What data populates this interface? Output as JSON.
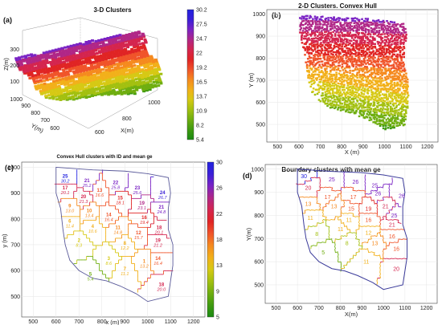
{
  "figure": {
    "panel_a_label": "(a)",
    "panel_b_label": "(b)",
    "panel_c_label": "(c)",
    "panel_d_label": "(d)"
  },
  "colors": {
    "ramp": [
      "#1a8a12",
      "#3f9a10",
      "#6fae10",
      "#a3c010",
      "#d6c914",
      "#f2b01a",
      "#f58a1f",
      "#f0542a",
      "#e02424",
      "#d4254f",
      "#b02787",
      "#7a23c4",
      "#3a1fd8",
      "#2222e0"
    ]
  },
  "chart_data": [
    {
      "type": "scatter",
      "panel": "a",
      "title": "3-D Clusters",
      "xlabel": "X(m)",
      "ylabel": "Y(m)",
      "zlabel": "Z(m)",
      "x_ticks": [
        "600",
        "800",
        "1000"
      ],
      "y_ticks": [
        "600",
        "700",
        "800",
        "900",
        "1000"
      ],
      "z_ticks": [
        "100",
        "200",
        "300"
      ],
      "colorbar_ticks": [
        "30.2",
        "27.5",
        "24.7",
        "22",
        "19.2",
        "16.5",
        "13.7",
        "10.9",
        "8.2",
        "5.4"
      ],
      "colorbar_range": [
        5.4,
        30.2
      ]
    },
    {
      "type": "scatter",
      "panel": "b",
      "title": "2-D Clusters.  Convex Hull",
      "xlabel": "X (m)",
      "ylabel": "Y  (m)",
      "xlim": [
        450,
        1250
      ],
      "ylim": [
        420,
        1020
      ],
      "x_ticks": [
        "500",
        "600",
        "700",
        "800",
        "900",
        "1000",
        "1100",
        "1200"
      ],
      "y_ticks": [
        "500",
        "600",
        "700",
        "800",
        "900",
        "1000"
      ]
    },
    {
      "type": "scatter",
      "panel": "c",
      "title": "Convex Hull clusters with ID and mean ge",
      "xlabel": "x (m)",
      "ylabel": "y (m)",
      "xlim": [
        450,
        1250
      ],
      "ylim": [
        420,
        1020
      ],
      "x_ticks": [
        "500",
        "600",
        "700",
        "800",
        "900",
        "1000",
        "1100",
        "1200"
      ],
      "y_ticks": [
        "500",
        "600",
        "700",
        "800",
        "900",
        "1000"
      ],
      "colorbar_ticks": [
        "30",
        "26",
        "22",
        "18",
        "13",
        "9",
        "5"
      ],
      "colorbar_range": [
        5,
        30
      ],
      "clusters": [
        {
          "id": "25",
          "ge": "30.2",
          "x": 640,
          "y": 960
        },
        {
          "id": "21",
          "ge": "25.2",
          "x": 735,
          "y": 943
        },
        {
          "id": "22",
          "ge": "25.8",
          "x": 860,
          "y": 935
        },
        {
          "id": "23",
          "ge": "25.6",
          "x": 955,
          "y": 915
        },
        {
          "id": "24",
          "ge": "26.7",
          "x": 1065,
          "y": 895
        },
        {
          "id": "17",
          "ge": "20.1",
          "x": 640,
          "y": 915
        },
        {
          "id": "20",
          "ge": "21.3",
          "x": 720,
          "y": 880
        },
        {
          "id": "13",
          "ge": "16.6",
          "x": 790,
          "y": 905
        },
        {
          "id": "15",
          "ge": "18.1",
          "x": 880,
          "y": 875
        },
        {
          "id": "19",
          "ge": "23.1",
          "x": 975,
          "y": 855
        },
        {
          "id": "21",
          "ge": "24.8",
          "x": 1060,
          "y": 840
        },
        {
          "id": "9",
          "ge": "13.0",
          "x": 660,
          "y": 845
        },
        {
          "id": "10",
          "ge": "13.4",
          "x": 745,
          "y": 825
        },
        {
          "id": "14",
          "ge": "16.4",
          "x": 830,
          "y": 810
        },
        {
          "id": "16",
          "ge": "19.4",
          "x": 985,
          "y": 800
        },
        {
          "id": "6",
          "ge": "11.4",
          "x": 660,
          "y": 785
        },
        {
          "id": "4",
          "ge": "10.6",
          "x": 760,
          "y": 765
        },
        {
          "id": "11",
          "ge": "14.8",
          "x": 870,
          "y": 760
        },
        {
          "id": "12",
          "ge": "15.7",
          "x": 960,
          "y": 740
        },
        {
          "id": "18",
          "ge": "20.1",
          "x": 1050,
          "y": 760
        },
        {
          "id": "19",
          "ge": "21.2",
          "x": 1045,
          "y": 710
        },
        {
          "id": "2",
          "ge": "8.3",
          "x": 700,
          "y": 710
        },
        {
          "id": "8",
          "ge": "12.2",
          "x": 900,
          "y": 700
        },
        {
          "id": "3",
          "ge": "8.6",
          "x": 830,
          "y": 640
        },
        {
          "id": "7",
          "ge": "11.1",
          "x": 900,
          "y": 600
        },
        {
          "id": "1",
          "ge": "13.2",
          "x": 985,
          "y": 630
        },
        {
          "id": "14",
          "ge": "16.4",
          "x": 1045,
          "y": 640
        },
        {
          "id": "5",
          "ge": "5.4",
          "x": 750,
          "y": 580
        },
        {
          "id": "18",
          "ge": "20.0",
          "x": 1060,
          "y": 540
        }
      ]
    },
    {
      "type": "scatter",
      "panel": "d",
      "title": "Boundary clusters with mean ge",
      "xlabel": "X(m)",
      "ylabel": "Y(m)",
      "xlim": [
        450,
        1250
      ],
      "ylim": [
        420,
        1020
      ],
      "x_ticks": [
        "500",
        "600",
        "700",
        "800",
        "900",
        "1000",
        "1100",
        "1200"
      ],
      "y_ticks": [
        "500",
        "600",
        "700",
        "800",
        "900",
        "1000"
      ],
      "labels": [
        {
          "v": "30",
          "x": 630,
          "y": 970
        },
        {
          "v": "25",
          "x": 760,
          "y": 955
        },
        {
          "v": "26",
          "x": 870,
          "y": 945
        },
        {
          "v": "25",
          "x": 960,
          "y": 930
        },
        {
          "v": "20",
          "x": 650,
          "y": 920
        },
        {
          "v": "26",
          "x": 975,
          "y": 895
        },
        {
          "v": "26",
          "x": 1085,
          "y": 885
        },
        {
          "v": "17",
          "x": 740,
          "y": 880
        },
        {
          "v": "17",
          "x": 860,
          "y": 880
        },
        {
          "v": "13",
          "x": 650,
          "y": 850
        },
        {
          "v": "13",
          "x": 770,
          "y": 840
        },
        {
          "v": "15",
          "x": 850,
          "y": 830
        },
        {
          "v": "19",
          "x": 930,
          "y": 830
        },
        {
          "v": "21",
          "x": 1010,
          "y": 840
        },
        {
          "v": "11",
          "x": 660,
          "y": 790
        },
        {
          "v": "11",
          "x": 840,
          "y": 780
        },
        {
          "v": "16",
          "x": 930,
          "y": 780
        },
        {
          "v": "25",
          "x": 1050,
          "y": 800
        },
        {
          "v": "21",
          "x": 1040,
          "y": 760
        },
        {
          "v": "8",
          "x": 690,
          "y": 720
        },
        {
          "v": "11",
          "x": 800,
          "y": 740
        },
        {
          "v": "12",
          "x": 930,
          "y": 725
        },
        {
          "v": "16",
          "x": 1040,
          "y": 710
        },
        {
          "v": "8",
          "x": 830,
          "y": 680
        },
        {
          "v": "13",
          "x": 960,
          "y": 680
        },
        {
          "v": "16",
          "x": 1060,
          "y": 655
        },
        {
          "v": "5",
          "x": 720,
          "y": 640
        },
        {
          "v": "11",
          "x": 920,
          "y": 600
        },
        {
          "v": "20",
          "x": 1060,
          "y": 570
        }
      ]
    }
  ]
}
